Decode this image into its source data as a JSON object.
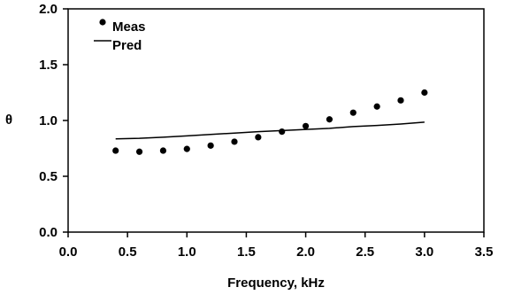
{
  "chart_data": {
    "type": "scatter",
    "title": "",
    "xlabel": "Frequency, kHz",
    "ylabel": "θ",
    "xlim": [
      0.0,
      3.5
    ],
    "ylim": [
      0.0,
      2.0
    ],
    "x_ticks": [
      "0.0",
      "0.5",
      "1.0",
      "1.5",
      "2.0",
      "2.5",
      "3.0",
      "3.5"
    ],
    "y_ticks": [
      "0.0",
      "0.5",
      "1.0",
      "1.5",
      "2.0"
    ],
    "grid": false,
    "legend_position": "top-left",
    "series": [
      {
        "name": "Meas",
        "style": "markers",
        "color": "#000000",
        "x": [
          0.4,
          0.6,
          0.8,
          1.0,
          1.2,
          1.4,
          1.6,
          1.8,
          2.0,
          2.2,
          2.4,
          2.6,
          2.8,
          3.0
        ],
        "y": [
          0.73,
          0.72,
          0.73,
          0.745,
          0.775,
          0.81,
          0.85,
          0.9,
          0.95,
          1.01,
          1.07,
          1.125,
          1.18,
          1.25
        ]
      },
      {
        "name": "Pred",
        "style": "line",
        "color": "#000000",
        "x": [
          0.4,
          0.6,
          0.8,
          1.0,
          1.2,
          1.4,
          1.6,
          1.8,
          2.0,
          2.2,
          2.4,
          2.6,
          2.8,
          3.0
        ],
        "y": [
          0.835,
          0.84,
          0.85,
          0.862,
          0.875,
          0.887,
          0.9,
          0.91,
          0.92,
          0.93,
          0.945,
          0.955,
          0.968,
          0.985
        ]
      }
    ]
  }
}
